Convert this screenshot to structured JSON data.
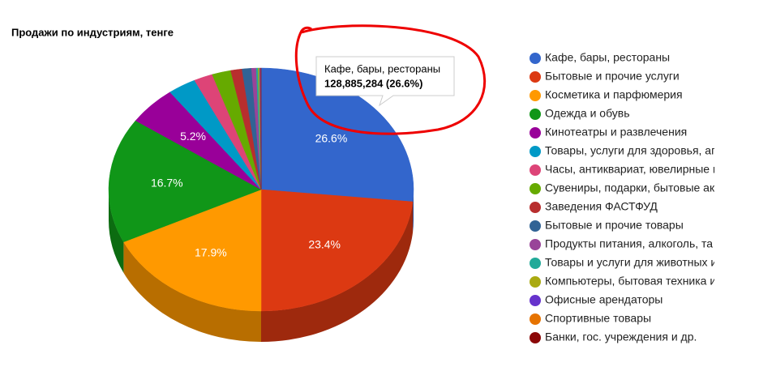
{
  "chart_data": {
    "type": "pie",
    "title": "Продажи по индустриям, тенге",
    "categories": [
      "Кафе, бары, рестораны",
      "Бытовые и прочие услуги",
      "Косметика и парфюмерия",
      "Одежда и обувь",
      "Кинотеатры и развлечения",
      "Товары, услуги для здоровья, аг",
      "Часы, антиквариат, ювелирные и",
      "Сувениры, подарки, бытовые ак",
      "Заведения ФАСТФУД",
      "Бытовые и прочие товары",
      "Продукты питания, алкоголь, та",
      "Товары и услуги для животных и",
      "Компьютеры, бытовая техника и",
      "Офисные арендаторы",
      "Спортивные товары",
      "Банки, гос. учреждения и др."
    ],
    "values": [
      26.6,
      23.4,
      17.9,
      16.7,
      5.2,
      3.0,
      2.0,
      2.0,
      1.2,
      1.0,
      0.5,
      0.2,
      0.15,
      0.1,
      0.03,
      0.02
    ],
    "value_labels": [
      "26.6%",
      "23.4%",
      "17.9%",
      "16.7%",
      "5.2%",
      null,
      null,
      null,
      null,
      null,
      null,
      null,
      null,
      null,
      null,
      null
    ],
    "colors": [
      "#3366cc",
      "#dc3912",
      "#ff9900",
      "#109618",
      "#990099",
      "#0099c6",
      "#dd4477",
      "#66aa00",
      "#b82e2e",
      "#316395",
      "#994499",
      "#22aa99",
      "#aaaa11",
      "#6633cc",
      "#e67300",
      "#8b0707"
    ],
    "legend": "right",
    "tooltip": {
      "title": "Кафе, бары, рестораны",
      "value": 128885284,
      "value_label": "128,885,284 (26.6%)"
    }
  }
}
